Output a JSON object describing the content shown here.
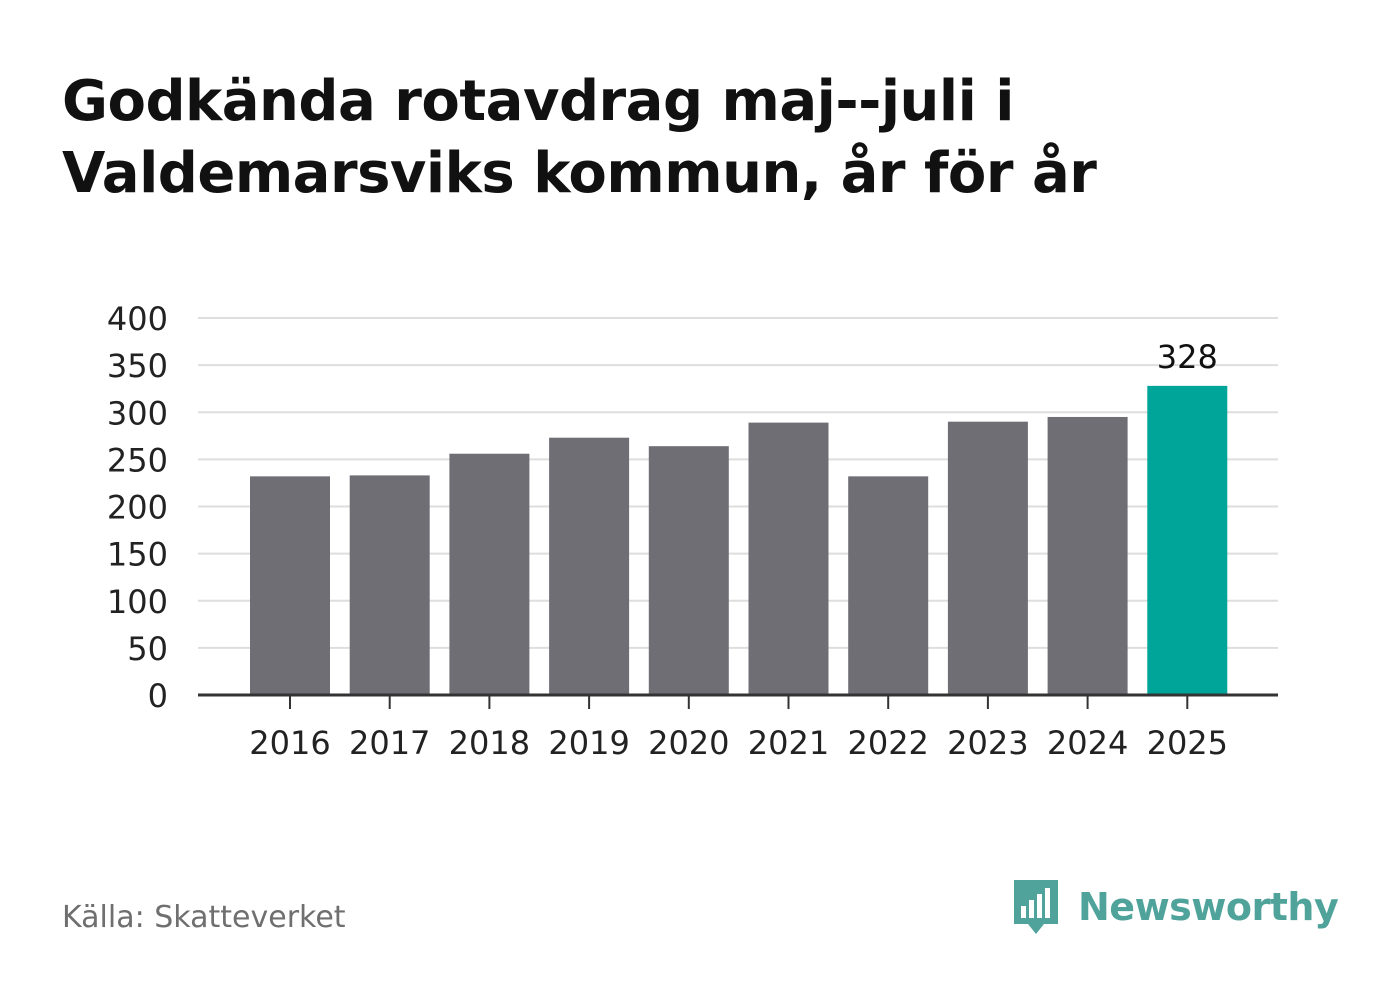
{
  "title": "Godkända rotavdrag maj--juli i Valdemarsviks kommun, år för år",
  "source": "Källa: Skatteverket",
  "brand": {
    "name": "Newsworthy",
    "icon": "newsworthy-bar-chart-icon",
    "color": "#4fa39a"
  },
  "colors": {
    "bar": "#6f6e74",
    "highlight": "#00a59a",
    "grid": "#dedede",
    "axis": "#333333",
    "text": "#222222"
  },
  "chart_data": {
    "type": "bar",
    "categories": [
      "2016",
      "2017",
      "2018",
      "2019",
      "2020",
      "2021",
      "2022",
      "2023",
      "2024",
      "2025"
    ],
    "values": [
      232,
      233,
      256,
      273,
      264,
      289,
      232,
      290,
      295,
      328
    ],
    "highlight_index": 9,
    "data_labels": [
      {
        "index": 9,
        "text": "328"
      }
    ],
    "yticks": [
      "0",
      "50",
      "100",
      "150",
      "200",
      "250",
      "300",
      "350",
      "400"
    ],
    "ylim": [
      0,
      400
    ],
    "grid": true,
    "legend": "none"
  }
}
